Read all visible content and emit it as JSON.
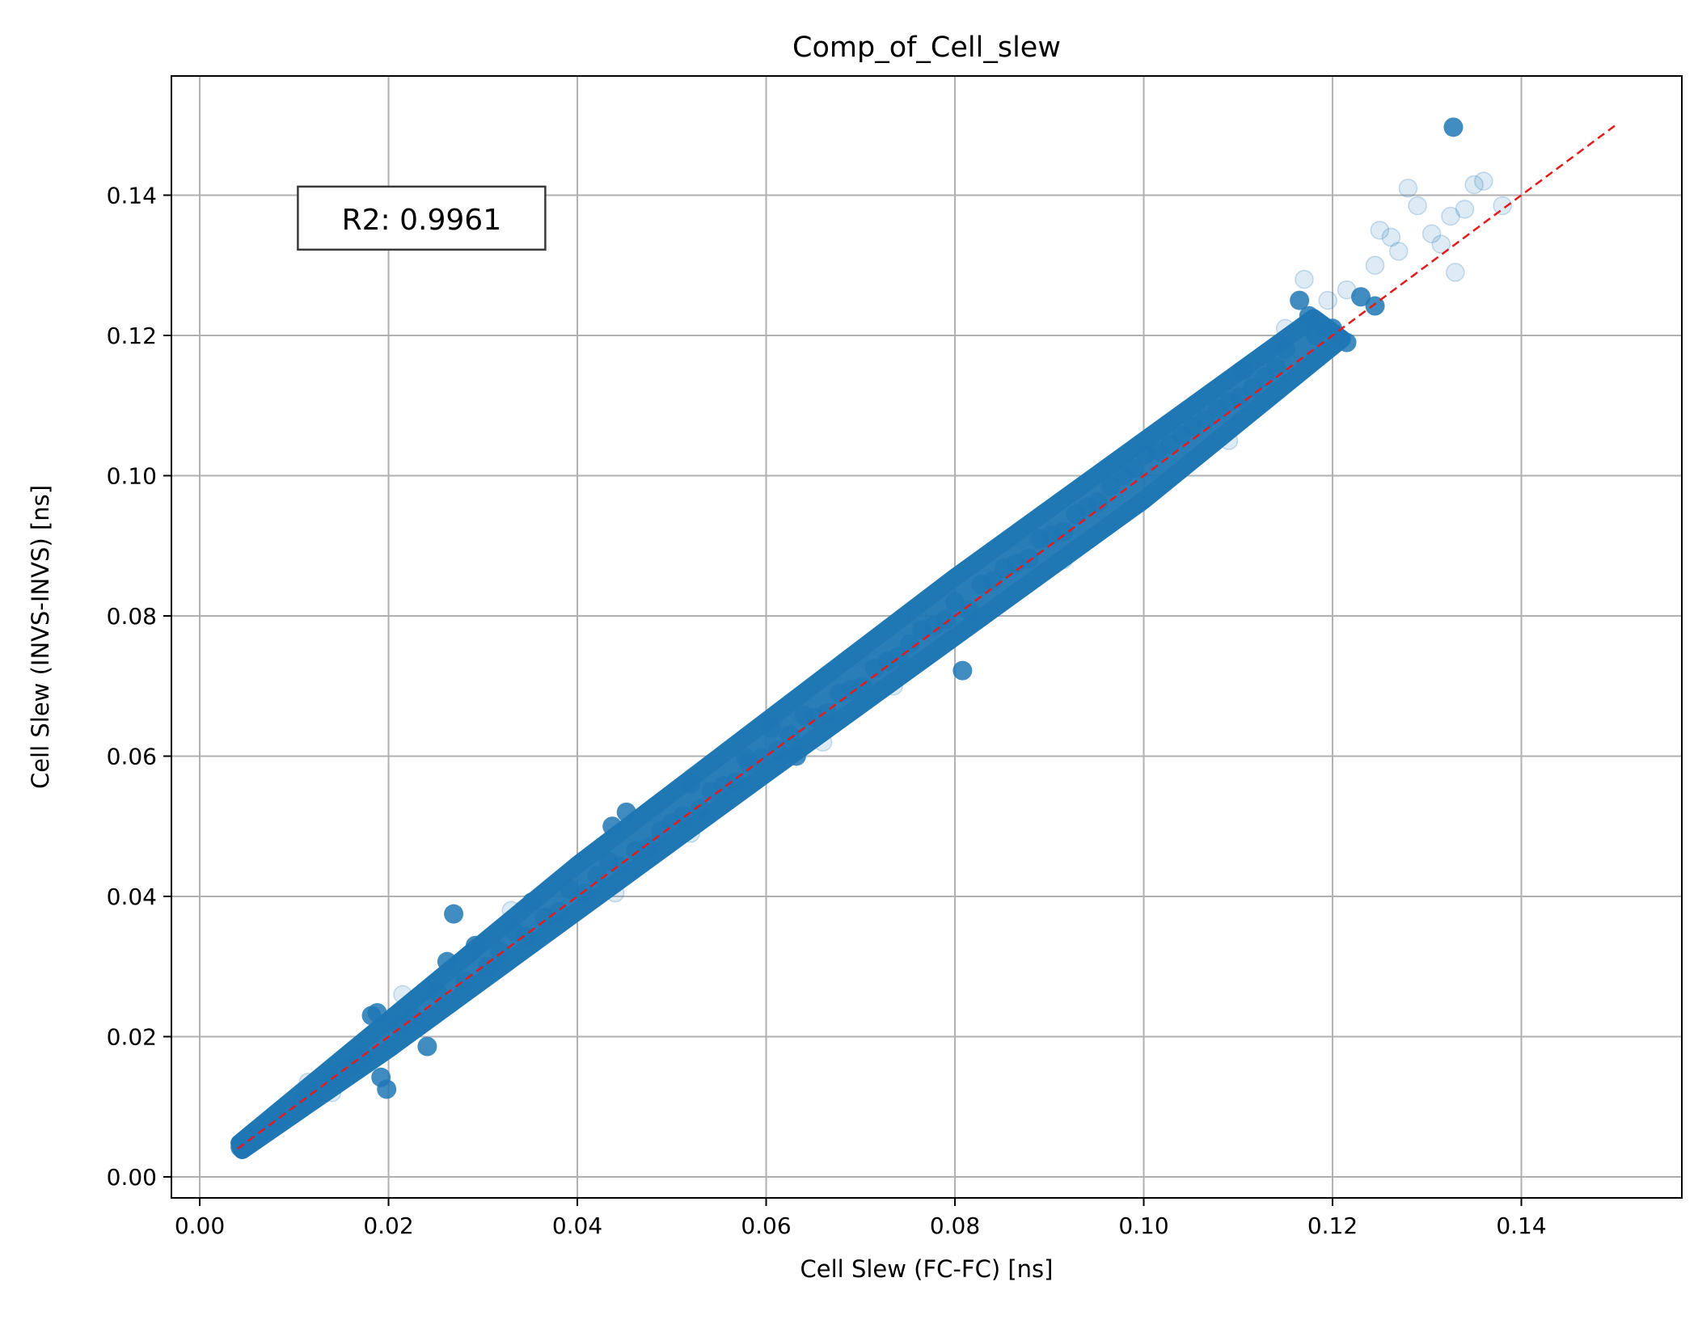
{
  "chart_data": {
    "type": "scatter",
    "title": "Comp_of_Cell_slew",
    "xlabel": "Cell Slew (FC-FC) [ns]",
    "ylabel": "Cell Slew (INVS-INVS) [ns]",
    "xlim": [
      -0.003,
      0.157
    ],
    "ylim": [
      -0.003,
      0.157
    ],
    "xticks": [
      0.0,
      0.02,
      0.04,
      0.06,
      0.08,
      0.1,
      0.12,
      0.14
    ],
    "yticks": [
      0.0,
      0.02,
      0.04,
      0.06,
      0.08,
      0.1,
      0.12,
      0.14
    ],
    "xtick_labels": [
      "0.00",
      "0.02",
      "0.04",
      "0.06",
      "0.08",
      "0.10",
      "0.12",
      "0.14"
    ],
    "ytick_labels": [
      "0.00",
      "0.02",
      "0.04",
      "0.06",
      "0.08",
      "0.10",
      "0.12",
      "0.14"
    ],
    "grid": true,
    "point_color": "#1f77b4",
    "reference_line": {
      "x": [
        0.004,
        0.15
      ],
      "y": [
        0.004,
        0.15
      ],
      "color": "#e41a1c",
      "style": "dashed"
    },
    "annotation": {
      "text": "R2: 0.9961",
      "x": 0.0235,
      "y": 0.1365
    },
    "series": [
      {
        "points": [
          [
            0.0043,
            0.0042
          ],
          [
            0.0052,
            0.0051
          ],
          [
            0.0061,
            0.006
          ],
          [
            0.0072,
            0.0071
          ],
          [
            0.0083,
            0.0082
          ],
          [
            0.0095,
            0.0094
          ],
          [
            0.0108,
            0.0106
          ],
          [
            0.0121,
            0.0119
          ],
          [
            0.0135,
            0.0132
          ],
          [
            0.0148,
            0.0147
          ],
          [
            0.016,
            0.0158
          ],
          [
            0.0173,
            0.0172
          ],
          [
            0.0182,
            0.023
          ],
          [
            0.0188,
            0.0234
          ],
          [
            0.0192,
            0.0142
          ],
          [
            0.0198,
            0.0125
          ],
          [
            0.0212,
            0.0214
          ],
          [
            0.0226,
            0.0228
          ],
          [
            0.0241,
            0.0186
          ],
          [
            0.0252,
            0.0263
          ],
          [
            0.0262,
            0.0307
          ],
          [
            0.0269,
            0.0375
          ],
          [
            0.0281,
            0.0279
          ],
          [
            0.0292,
            0.033
          ],
          [
            0.0305,
            0.03
          ],
          [
            0.0318,
            0.0322
          ],
          [
            0.0333,
            0.035
          ],
          [
            0.0345,
            0.0342
          ],
          [
            0.0352,
            0.0392
          ],
          [
            0.0365,
            0.037
          ],
          [
            0.038,
            0.0378
          ],
          [
            0.0392,
            0.041
          ],
          [
            0.0408,
            0.0405
          ],
          [
            0.0421,
            0.043
          ],
          [
            0.0433,
            0.045
          ],
          [
            0.0437,
            0.05
          ],
          [
            0.0445,
            0.0443
          ],
          [
            0.0452,
            0.052
          ],
          [
            0.0462,
            0.0465
          ],
          [
            0.0475,
            0.047
          ],
          [
            0.0488,
            0.0493
          ],
          [
            0.05,
            0.0505
          ],
          [
            0.0512,
            0.0515
          ],
          [
            0.052,
            0.056
          ],
          [
            0.053,
            0.0525
          ],
          [
            0.0542,
            0.055
          ],
          [
            0.0555,
            0.0558
          ],
          [
            0.0568,
            0.0563
          ],
          [
            0.0578,
            0.0598
          ],
          [
            0.0582,
            0.059
          ],
          [
            0.0595,
            0.0598
          ],
          [
            0.0605,
            0.064
          ],
          [
            0.0612,
            0.0608
          ],
          [
            0.0625,
            0.063
          ],
          [
            0.0632,
            0.06
          ],
          [
            0.064,
            0.0658
          ],
          [
            0.0652,
            0.0655
          ],
          [
            0.0665,
            0.0662
          ],
          [
            0.0678,
            0.069
          ],
          [
            0.069,
            0.0695
          ],
          [
            0.0702,
            0.07
          ],
          [
            0.0715,
            0.0725
          ],
          [
            0.0728,
            0.0735
          ],
          [
            0.074,
            0.0742
          ],
          [
            0.0752,
            0.076
          ],
          [
            0.0765,
            0.078
          ],
          [
            0.0778,
            0.0786
          ],
          [
            0.079,
            0.0795
          ],
          [
            0.08,
            0.082
          ],
          [
            0.0808,
            0.0722
          ],
          [
            0.0815,
            0.0808
          ],
          [
            0.0828,
            0.0845
          ],
          [
            0.084,
            0.085
          ],
          [
            0.0852,
            0.0868
          ],
          [
            0.0865,
            0.0875
          ],
          [
            0.0878,
            0.0882
          ],
          [
            0.089,
            0.091
          ],
          [
            0.0902,
            0.0915
          ],
          [
            0.0915,
            0.092
          ],
          [
            0.0928,
            0.0945
          ],
          [
            0.094,
            0.0955
          ],
          [
            0.0952,
            0.0962
          ],
          [
            0.0965,
            0.0985
          ],
          [
            0.0978,
            0.1
          ],
          [
            0.099,
            0.101
          ],
          [
            0.1002,
            0.103
          ],
          [
            0.1015,
            0.1035
          ],
          [
            0.1028,
            0.1045
          ],
          [
            0.104,
            0.1058
          ],
          [
            0.1052,
            0.107
          ],
          [
            0.1065,
            0.108
          ],
          [
            0.1078,
            0.1095
          ],
          [
            0.109,
            0.1105
          ],
          [
            0.1102,
            0.1112
          ],
          [
            0.1115,
            0.1125
          ],
          [
            0.1105,
            0.115
          ],
          [
            0.1128,
            0.114
          ],
          [
            0.114,
            0.1155
          ],
          [
            0.115,
            0.118
          ],
          [
            0.1165,
            0.125
          ],
          [
            0.1175,
            0.1228
          ],
          [
            0.1182,
            0.12
          ],
          [
            0.12,
            0.121
          ],
          [
            0.1215,
            0.119
          ],
          [
            0.123,
            0.1255
          ],
          [
            0.1245,
            0.1242
          ],
          [
            0.1328,
            0.1497
          ]
        ],
        "faint_points": [
          [
            0.0115,
            0.0135
          ],
          [
            0.014,
            0.012
          ],
          [
            0.0215,
            0.026
          ],
          [
            0.024,
            0.0265
          ],
          [
            0.0285,
            0.027
          ],
          [
            0.033,
            0.038
          ],
          [
            0.036,
            0.0355
          ],
          [
            0.044,
            0.0405
          ],
          [
            0.048,
            0.052
          ],
          [
            0.052,
            0.049
          ],
          [
            0.0585,
            0.0575
          ],
          [
            0.062,
            0.065
          ],
          [
            0.066,
            0.062
          ],
          [
            0.07,
            0.074
          ],
          [
            0.0735,
            0.07
          ],
          [
            0.076,
            0.08
          ],
          [
            0.083,
            0.08
          ],
          [
            0.087,
            0.091
          ],
          [
            0.0915,
            0.088
          ],
          [
            0.096,
            0.1
          ],
          [
            0.0995,
            0.096
          ],
          [
            0.105,
            0.109
          ],
          [
            0.109,
            0.105
          ],
          [
            0.111,
            0.1105
          ],
          [
            0.115,
            0.121
          ],
          [
            0.117,
            0.128
          ],
          [
            0.1195,
            0.125
          ],
          [
            0.1215,
            0.1265
          ],
          [
            0.1245,
            0.13
          ],
          [
            0.125,
            0.135
          ],
          [
            0.1262,
            0.134
          ],
          [
            0.127,
            0.132
          ],
          [
            0.128,
            0.141
          ],
          [
            0.129,
            0.1385
          ],
          [
            0.1305,
            0.1345
          ],
          [
            0.1315,
            0.133
          ],
          [
            0.1325,
            0.137
          ],
          [
            0.134,
            0.138
          ],
          [
            0.135,
            0.1415
          ],
          [
            0.136,
            0.142
          ],
          [
            0.133,
            0.129
          ],
          [
            0.138,
            0.1385
          ]
        ]
      }
    ]
  }
}
